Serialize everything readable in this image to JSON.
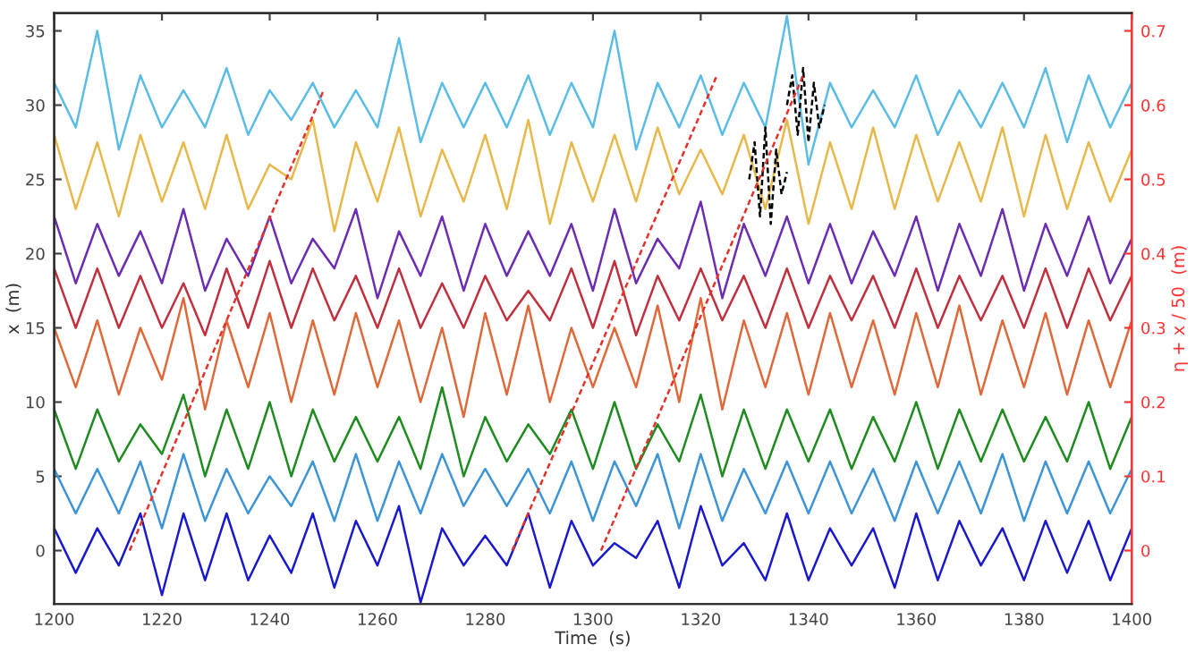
{
  "chart_data": {
    "type": "line",
    "xlabel": "Time  (s)",
    "ylabel": "x  (m)",
    "y2label": "η + x / 50  (m)",
    "xlim": [
      1200,
      1400
    ],
    "xticks": [
      1200,
      1220,
      1240,
      1260,
      1280,
      1300,
      1320,
      1340,
      1360,
      1380,
      1400
    ],
    "ylim": [
      -3.6,
      36.2
    ],
    "yticks": [
      0,
      5,
      10,
      15,
      20,
      25,
      30,
      35
    ],
    "y2lim": [
      -0.072,
      0.724
    ],
    "y2ticks": [
      0,
      0.1,
      0.2,
      0.3,
      0.4,
      0.5,
      0.6,
      0.7
    ],
    "grid": false,
    "legend": false,
    "marker": "none",
    "line_style": "solid",
    "x": [
      1200,
      1204,
      1208,
      1212,
      1216,
      1220,
      1224,
      1228,
      1232,
      1236,
      1240,
      1244,
      1248,
      1252,
      1256,
      1260,
      1264,
      1268,
      1272,
      1276,
      1280,
      1284,
      1288,
      1292,
      1296,
      1300,
      1304,
      1308,
      1312,
      1316,
      1320,
      1324,
      1328,
      1332,
      1336,
      1340,
      1344,
      1348,
      1352,
      1356,
      1360,
      1364,
      1368,
      1372,
      1376,
      1380,
      1384,
      1388,
      1392,
      1396,
      1400
    ],
    "series": [
      {
        "color": "#1a1acc",
        "values": [
          1.5,
          -1.5,
          1.5,
          -1,
          2.5,
          -3,
          2.5,
          -2,
          2.5,
          -2,
          1,
          -1.5,
          2.5,
          -2.5,
          2,
          -1,
          3,
          -3.5,
          1.5,
          -1,
          1,
          -1,
          2.5,
          -2.5,
          2,
          -1,
          0.5,
          -0.5,
          2,
          -2.5,
          3,
          -1,
          0.5,
          -2,
          2.5,
          -2,
          1.5,
          -1,
          1.5,
          -2.5,
          2.5,
          -2,
          2,
          -1,
          1.5,
          -2,
          2,
          -1.5,
          2,
          -2,
          1.5
        ]
      },
      {
        "color": "#3d94d6",
        "values": [
          5.5,
          2.5,
          5.5,
          2.5,
          6,
          1.5,
          6.5,
          2,
          5.5,
          2.5,
          5,
          3,
          6,
          2,
          6.5,
          2,
          6,
          2.5,
          6.5,
          3,
          5.5,
          3,
          5.5,
          2.5,
          6,
          2,
          6,
          3,
          6.5,
          1.5,
          6.5,
          2,
          5.5,
          2.5,
          6,
          2.5,
          6,
          2.5,
          5.5,
          2,
          6,
          2.5,
          6,
          2.5,
          6.5,
          2,
          6,
          2.5,
          6,
          2.5,
          5.5
        ]
      },
      {
        "color": "#1f8c1f",
        "values": [
          9.5,
          5.5,
          9.5,
          6,
          8.5,
          6.5,
          10.5,
          5,
          9.5,
          5.5,
          10,
          5,
          9.5,
          6,
          9,
          6,
          9,
          5.5,
          11,
          5,
          9,
          6,
          8.5,
          6.5,
          9.5,
          5.5,
          10,
          5.5,
          8.5,
          6,
          10.5,
          5,
          9.5,
          5.5,
          9.5,
          6,
          9.5,
          5.5,
          9,
          6,
          10,
          5.5,
          9.5,
          6,
          9.5,
          6,
          9,
          6,
          10,
          5.5,
          9
        ]
      },
      {
        "color": "#e0693a",
        "values": [
          15,
          11,
          15.5,
          10.5,
          15,
          11.5,
          17,
          9.5,
          15.5,
          11,
          16,
          10,
          15.5,
          10.5,
          16,
          11,
          15.5,
          10,
          15,
          9,
          16,
          10.5,
          16.5,
          10,
          15,
          11,
          15,
          11,
          16.5,
          10,
          17,
          9.5,
          15.5,
          11,
          16,
          10.5,
          16,
          11,
          15.5,
          10.5,
          16,
          11,
          16.5,
          10.5,
          15.5,
          11,
          16,
          10.5,
          15.5,
          11,
          15.5
        ]
      },
      {
        "color": "#c0303f",
        "values": [
          19,
          15,
          19,
          15,
          18.5,
          15,
          18,
          14.5,
          19,
          15,
          19.5,
          15,
          19,
          15.5,
          18.5,
          15,
          19,
          15,
          18,
          15,
          18.5,
          15.5,
          17.5,
          15.5,
          19,
          15,
          19.5,
          14.5,
          18.5,
          15.5,
          19,
          15.5,
          18.5,
          15,
          19,
          15,
          18.5,
          15.5,
          18.5,
          15,
          19,
          15,
          18.5,
          15.5,
          18.5,
          15,
          19,
          15,
          19,
          15.5,
          18.5
        ]
      },
      {
        "color": "#6a2db3",
        "values": [
          22.5,
          18,
          22,
          18.5,
          21.5,
          18,
          23,
          17.5,
          21,
          18.5,
          22.5,
          18,
          21,
          19,
          23,
          17,
          21.5,
          18.5,
          22.5,
          17.5,
          22,
          18.5,
          21.5,
          18.5,
          22,
          17.5,
          23,
          18,
          21,
          19,
          23.5,
          17,
          22,
          18.5,
          22.5,
          18,
          22,
          18,
          21.5,
          18.5,
          22.5,
          17.5,
          22,
          18.5,
          23,
          17.5,
          22,
          18.5,
          22.5,
          18,
          21
        ]
      },
      {
        "color": "#e8b84a",
        "values": [
          28,
          23,
          27.5,
          22.5,
          28,
          23.5,
          27.5,
          23,
          28,
          23,
          26,
          25,
          29,
          21.5,
          27.5,
          23.5,
          28.5,
          22.5,
          27,
          23.5,
          28,
          23,
          29,
          22,
          27.5,
          23.5,
          28,
          23.5,
          28.5,
          24,
          27,
          24,
          28,
          23,
          29,
          22,
          27.5,
          23,
          28.5,
          23,
          28,
          23.5,
          27.5,
          23.5,
          28.5,
          22.5,
          28,
          23,
          27.5,
          23.5,
          27
        ]
      },
      {
        "color": "#5bbde6",
        "values": [
          31.5,
          28.5,
          35,
          27,
          32,
          28.5,
          31,
          28.5,
          32.5,
          28,
          31,
          29,
          31.5,
          28.5,
          31,
          28.5,
          34.5,
          27.5,
          31.5,
          28.5,
          31.5,
          28.5,
          32,
          28,
          31.5,
          28.5,
          35,
          27,
          31.5,
          28.5,
          32,
          28,
          31.5,
          28.5,
          36,
          26,
          31.5,
          28.5,
          31,
          28.5,
          32,
          28,
          31,
          28.5,
          31.5,
          28.5,
          32.5,
          27.5,
          32,
          28.5,
          31.5
        ]
      },
      {
        "color": "#000000",
        "line_style": "dashed",
        "x": [
          1329,
          1330,
          1331,
          1332,
          1333,
          1334,
          1335,
          1336
        ],
        "values": [
          25,
          27.5,
          22.5,
          28.5,
          22,
          27,
          24,
          25.5
        ]
      },
      {
        "color": "#000000",
        "line_style": "dashed",
        "x": [
          1336,
          1337,
          1338,
          1339,
          1340,
          1341,
          1342,
          1343
        ],
        "values": [
          30,
          32,
          28,
          32.5,
          27.5,
          31.5,
          28.5,
          30
        ]
      },
      {
        "color": "#e8302a",
        "line_style": "dashed",
        "x": [
          1214,
          1250
        ],
        "values": [
          0,
          31
        ]
      },
      {
        "color": "#e8302a",
        "line_style": "dashed",
        "x": [
          1285,
          1323
        ],
        "values": [
          0,
          32
        ]
      },
      {
        "color": "#e8302a",
        "line_style": "dashed",
        "x": [
          1301.5,
          1339
        ],
        "values": [
          0,
          32
        ]
      }
    ]
  }
}
